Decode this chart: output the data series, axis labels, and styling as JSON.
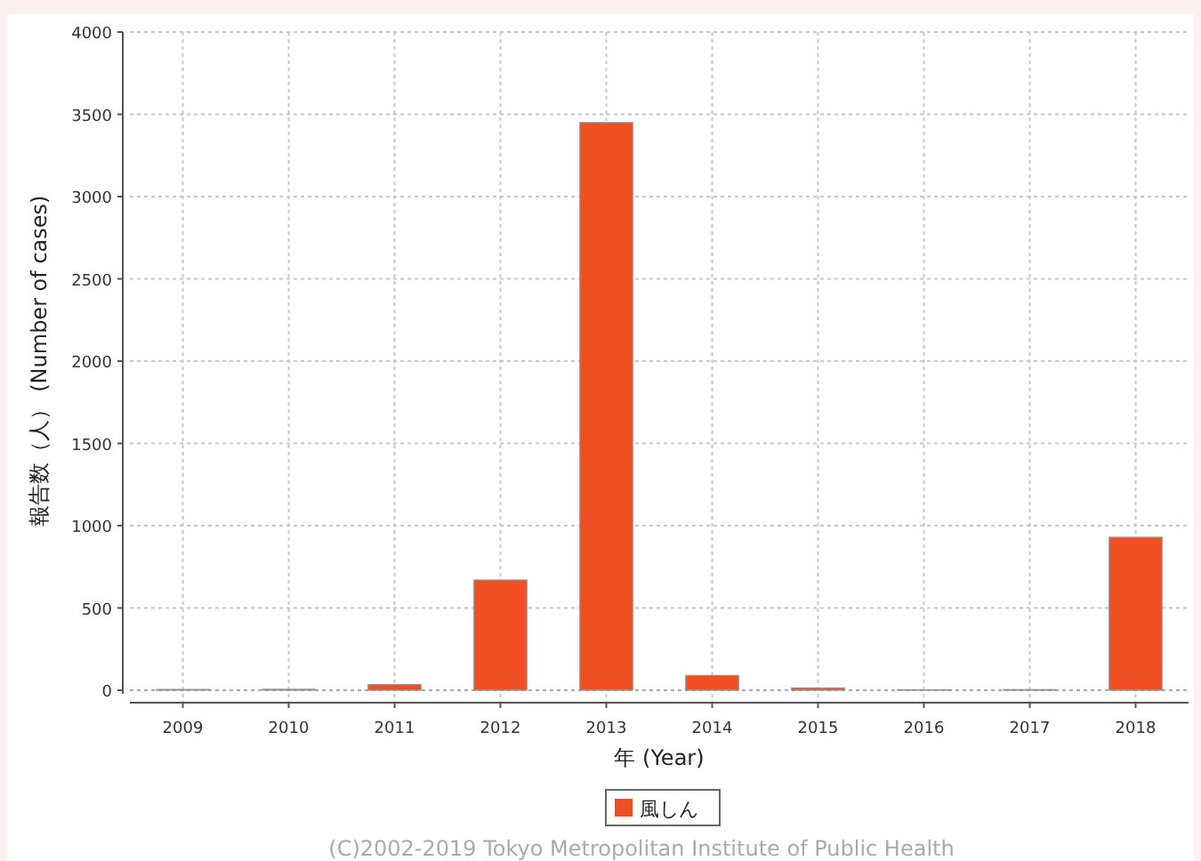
{
  "chart_data": {
    "type": "bar",
    "xlabel": "年 (Year)",
    "ylabel": "報告数（人） (Number of cases)",
    "categories": [
      "2009",
      "2010",
      "2011",
      "2012",
      "2013",
      "2014",
      "2015",
      "2016",
      "2017",
      "2018"
    ],
    "series": [
      {
        "name": "風しん",
        "color": "#f04e23",
        "values": [
          5,
          6,
          35,
          670,
          3450,
          90,
          14,
          3,
          4,
          930
        ]
      }
    ],
    "ylim": [
      0,
      4000
    ],
    "yticks": [
      0,
      500,
      1000,
      1500,
      2000,
      2500,
      3000,
      3500,
      4000
    ],
    "grid": true,
    "legend": "bottom",
    "annotations": [
      "(C)2002-2019 Tokyo Metropolitan Institute of Public Health"
    ]
  }
}
